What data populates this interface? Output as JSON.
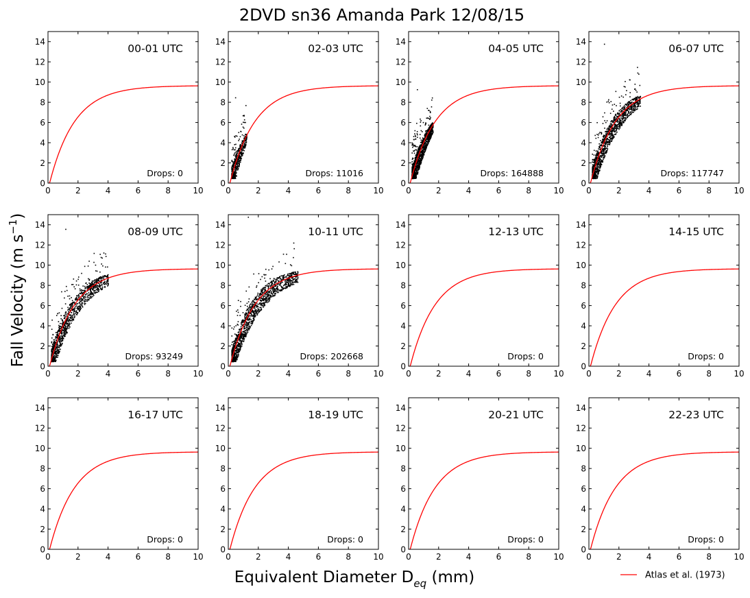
{
  "figure": {
    "title": "2DVD sn36 Amanda Park 12/08/15",
    "ylabel": "Fall Velocity (m s",
    "ylabel_sup": "−1",
    "ylabel_end": ")",
    "xlabel": "Equivalent Diameter D",
    "xlabel_sub": "eq",
    "xlabel_end": " (mm)",
    "legend_label": "Atlas et al. (1973)",
    "curve_color": "#ff0000",
    "point_color": "#000000"
  },
  "chart_data": [
    {
      "type": "scatter",
      "panel_label": "00-01 UTC",
      "drops_label": "Drops: 0",
      "drops": 0,
      "xlim": [
        0,
        10
      ],
      "ylim": [
        0,
        15
      ],
      "xticks": [
        0,
        2,
        4,
        6,
        8,
        10
      ],
      "yticks": [
        0,
        2,
        4,
        6,
        8,
        10,
        12,
        14
      ],
      "scatter_envelope": null,
      "atlas_curve": {
        "a": 9.65,
        "b": 10.3,
        "c": 0.6
      }
    },
    {
      "type": "scatter",
      "panel_label": "02-03 UTC",
      "drops_label": "Drops: 11016",
      "drops": 11016,
      "xlim": [
        0,
        10
      ],
      "ylim": [
        0,
        15
      ],
      "xticks": [
        0,
        2,
        4,
        6,
        8,
        10
      ],
      "yticks": [
        0,
        2,
        4,
        6,
        8,
        10,
        12,
        14
      ],
      "scatter_envelope": {
        "dmin": 0.2,
        "dmax": 1.2,
        "vmax_outlier": 8.5
      },
      "atlas_curve": {
        "a": 9.65,
        "b": 10.3,
        "c": 0.6
      }
    },
    {
      "type": "scatter",
      "panel_label": "04-05 UTC",
      "drops_label": "Drops: 164888",
      "drops": 164888,
      "xlim": [
        0,
        10
      ],
      "ylim": [
        0,
        15
      ],
      "xticks": [
        0,
        2,
        4,
        6,
        8,
        10
      ],
      "yticks": [
        0,
        2,
        4,
        6,
        8,
        10,
        12,
        14
      ],
      "scatter_envelope": {
        "dmin": 0.2,
        "dmax": 1.6,
        "vmax_outlier": 9.3
      },
      "atlas_curve": {
        "a": 9.65,
        "b": 10.3,
        "c": 0.6
      }
    },
    {
      "type": "scatter",
      "panel_label": "06-07 UTC",
      "drops_label": "Drops: 117747",
      "drops": 117747,
      "xlim": [
        0,
        10
      ],
      "ylim": [
        0,
        15
      ],
      "xticks": [
        0,
        2,
        4,
        6,
        8,
        10
      ],
      "yticks": [
        0,
        2,
        4,
        6,
        8,
        10,
        12,
        14
      ],
      "scatter_envelope": {
        "dmin": 0.2,
        "dmax": 3.4,
        "vmax_outlier": 13.8
      },
      "atlas_curve": {
        "a": 9.65,
        "b": 10.3,
        "c": 0.6
      }
    },
    {
      "type": "scatter",
      "panel_label": "08-09 UTC",
      "drops_label": "Drops: 93249",
      "drops": 93249,
      "xlim": [
        0,
        10
      ],
      "ylim": [
        0,
        15
      ],
      "xticks": [
        0,
        2,
        4,
        6,
        8,
        10
      ],
      "yticks": [
        0,
        2,
        4,
        6,
        8,
        10,
        12,
        14
      ],
      "scatter_envelope": {
        "dmin": 0.2,
        "dmax": 4.0,
        "vmax_outlier": 13.6
      },
      "atlas_curve": {
        "a": 9.65,
        "b": 10.3,
        "c": 0.6
      }
    },
    {
      "type": "scatter",
      "panel_label": "10-11 UTC",
      "drops_label": "Drops: 202668",
      "drops": 202668,
      "xlim": [
        0,
        10
      ],
      "ylim": [
        0,
        15
      ],
      "xticks": [
        0,
        2,
        4,
        6,
        8,
        10
      ],
      "yticks": [
        0,
        2,
        4,
        6,
        8,
        10,
        12,
        14
      ],
      "scatter_envelope": {
        "dmin": 0.2,
        "dmax": 4.6,
        "vmax_outlier": 14.8
      },
      "atlas_curve": {
        "a": 9.65,
        "b": 10.3,
        "c": 0.6
      }
    },
    {
      "type": "scatter",
      "panel_label": "12-13 UTC",
      "drops_label": "Drops: 0",
      "drops": 0,
      "xlim": [
        0,
        10
      ],
      "ylim": [
        0,
        15
      ],
      "xticks": [
        0,
        2,
        4,
        6,
        8,
        10
      ],
      "yticks": [
        0,
        2,
        4,
        6,
        8,
        10,
        12,
        14
      ],
      "scatter_envelope": null,
      "atlas_curve": {
        "a": 9.65,
        "b": 10.3,
        "c": 0.6
      }
    },
    {
      "type": "scatter",
      "panel_label": "14-15 UTC",
      "drops_label": "Drops: 0",
      "drops": 0,
      "xlim": [
        0,
        10
      ],
      "ylim": [
        0,
        15
      ],
      "xticks": [
        0,
        2,
        4,
        6,
        8,
        10
      ],
      "yticks": [
        0,
        2,
        4,
        6,
        8,
        10,
        12,
        14
      ],
      "scatter_envelope": null,
      "atlas_curve": {
        "a": 9.65,
        "b": 10.3,
        "c": 0.6
      }
    },
    {
      "type": "scatter",
      "panel_label": "16-17 UTC",
      "drops_label": "Drops: 0",
      "drops": 0,
      "xlim": [
        0,
        10
      ],
      "ylim": [
        0,
        15
      ],
      "xticks": [
        0,
        2,
        4,
        6,
        8,
        10
      ],
      "yticks": [
        0,
        2,
        4,
        6,
        8,
        10,
        12,
        14
      ],
      "scatter_envelope": null,
      "atlas_curve": {
        "a": 9.65,
        "b": 10.3,
        "c": 0.6
      }
    },
    {
      "type": "scatter",
      "panel_label": "18-19 UTC",
      "drops_label": "Drops: 0",
      "drops": 0,
      "xlim": [
        0,
        10
      ],
      "ylim": [
        0,
        15
      ],
      "xticks": [
        0,
        2,
        4,
        6,
        8,
        10
      ],
      "yticks": [
        0,
        2,
        4,
        6,
        8,
        10,
        12,
        14
      ],
      "scatter_envelope": null,
      "atlas_curve": {
        "a": 9.65,
        "b": 10.3,
        "c": 0.6
      }
    },
    {
      "type": "scatter",
      "panel_label": "20-21 UTC",
      "drops_label": "Drops: 0",
      "drops": 0,
      "xlim": [
        0,
        10
      ],
      "ylim": [
        0,
        15
      ],
      "xticks": [
        0,
        2,
        4,
        6,
        8,
        10
      ],
      "yticks": [
        0,
        2,
        4,
        6,
        8,
        10,
        12,
        14
      ],
      "scatter_envelope": null,
      "atlas_curve": {
        "a": 9.65,
        "b": 10.3,
        "c": 0.6
      }
    },
    {
      "type": "scatter",
      "panel_label": "22-23 UTC",
      "drops_label": "Drops: 0",
      "drops": 0,
      "xlim": [
        0,
        10
      ],
      "ylim": [
        0,
        15
      ],
      "xticks": [
        0,
        2,
        4,
        6,
        8,
        10
      ],
      "yticks": [
        0,
        2,
        4,
        6,
        8,
        10,
        12,
        14
      ],
      "scatter_envelope": null,
      "atlas_curve": {
        "a": 9.65,
        "b": 10.3,
        "c": 0.6
      }
    }
  ]
}
